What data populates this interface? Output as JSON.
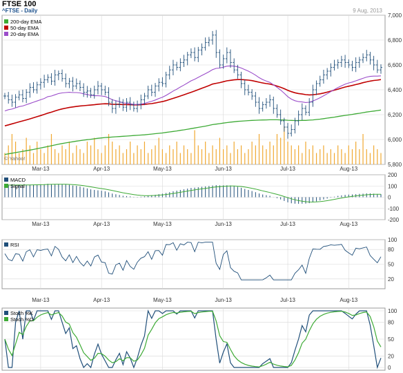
{
  "header": {
    "title": "FTSE 100",
    "subtitle": "^FTSE - Daily",
    "date": "9 Aug, 2013",
    "watermark": "© Yahoo!"
  },
  "colors": {
    "price": "#1f4e79",
    "ema200": "#3daa35",
    "ema50": "#c00000",
    "ema20": "#9b4dca",
    "volume": "#f0a830",
    "macd": "#1f4e79",
    "signal": "#3daa35",
    "rsi": "#1f4e79",
    "stochK": "#1f4e79",
    "stochD": "#3daa35",
    "grid": "#d8d8d8"
  },
  "chart_data": [
    {
      "type": "line",
      "panel": "price",
      "x_labels": [
        "Mar-13",
        "Apr-13",
        "May-13",
        "Jun-13",
        "Jul-13",
        "Aug-13"
      ],
      "ylim": [
        5800,
        7000
      ],
      "yticks": [
        "7,000",
        "6,800",
        "6,600",
        "6,400",
        "6,200",
        "6,000",
        "5,800"
      ],
      "legend": [
        "200-day EMA",
        "50-day EMA",
        "20-day EMA"
      ],
      "close": [
        6350,
        6320,
        6300,
        6340,
        6360,
        6330,
        6380,
        6420,
        6400,
        6440,
        6460,
        6480,
        6500,
        6470,
        6520,
        6530,
        6490,
        6450,
        6470,
        6430,
        6450,
        6420,
        6380,
        6390,
        6360,
        6400,
        6430,
        6400,
        6380,
        6300,
        6250,
        6280,
        6300,
        6260,
        6300,
        6280,
        6250,
        6280,
        6320,
        6350,
        6400,
        6380,
        6430,
        6460,
        6450,
        6520,
        6560,
        6600,
        6580,
        6620,
        6640,
        6680,
        6700,
        6660,
        6720,
        6740,
        6780,
        6800,
        6840,
        6700,
        6600,
        6650,
        6700,
        6620,
        6560,
        6520,
        6450,
        6400,
        6380,
        6350,
        6300,
        6250,
        6280,
        6300,
        6320,
        6250,
        6200,
        6150,
        6100,
        6050,
        6080,
        6150,
        6200,
        6250,
        6220,
        6300,
        6400,
        6450,
        6480,
        6520,
        6550,
        6580,
        6600,
        6620,
        6640,
        6620,
        6600,
        6580,
        6620,
        6640,
        6660,
        6680,
        6640,
        6600,
        6560,
        6580
      ],
      "ema20": [
        6230,
        6240,
        6245,
        6255,
        6265,
        6270,
        6280,
        6290,
        6300,
        6310,
        6320,
        6330,
        6345,
        6350,
        6360,
        6370,
        6375,
        6378,
        6380,
        6378,
        6378,
        6375,
        6368,
        6362,
        6355,
        6352,
        6352,
        6350,
        6346,
        6335,
        6320,
        6312,
        6305,
        6295,
        6292,
        6288,
        6282,
        6282,
        6285,
        6290,
        6300,
        6308,
        6318,
        6330,
        6340,
        6355,
        6372,
        6390,
        6405,
        6422,
        6438,
        6455,
        6472,
        6485,
        6500,
        6515,
        6530,
        6545,
        6562,
        6572,
        6575,
        6582,
        6590,
        6592,
        6590,
        6585,
        6575,
        6562,
        6550,
        6535,
        6518,
        6498,
        6482,
        6470,
        6460,
        6440,
        6420,
        6398,
        6372,
        6345,
        6325,
        6312,
        6305,
        6302,
        6298,
        6300,
        6310,
        6322,
        6336,
        6352,
        6368,
        6385,
        6402,
        6418,
        6432,
        6445,
        6455,
        6462,
        6472,
        6482,
        6492,
        6502,
        6508,
        6510,
        6510,
        6512
      ],
      "ema50": [
        6110,
        6118,
        6126,
        6134,
        6142,
        6150,
        6158,
        6166,
        6175,
        6184,
        6193,
        6202,
        6212,
        6220,
        6230,
        6239,
        6246,
        6252,
        6258,
        6262,
        6266,
        6270,
        6272,
        6275,
        6277,
        6280,
        6284,
        6286,
        6288,
        6287,
        6284,
        6283,
        6283,
        6281,
        6281,
        6280,
        6279,
        6279,
        6280,
        6282,
        6286,
        6289,
        6294,
        6300,
        6305,
        6313,
        6322,
        6331,
        6340,
        6350,
        6360,
        6370,
        6380,
        6390,
        6401,
        6412,
        6423,
        6434,
        6446,
        6452,
        6458,
        6465,
        6472,
        6476,
        6480,
        6482,
        6482,
        6480,
        6478,
        6474,
        6468,
        6461,
        6455,
        6450,
        6446,
        6439,
        6430,
        6420,
        6409,
        6396,
        6385,
        6376,
        6370,
        6366,
        6361,
        6359,
        6360,
        6364,
        6368,
        6374,
        6381,
        6389,
        6397,
        6405,
        6414,
        6422,
        6429,
        6435,
        6442,
        6449,
        6457,
        6464,
        6470,
        6475,
        6478,
        6482
      ],
      "ema200": [
        5880,
        5885,
        5890,
        5895,
        5900,
        5905,
        5910,
        5915,
        5920,
        5926,
        5932,
        5938,
        5944,
        5950,
        5956,
        5962,
        5968,
        5973,
        5978,
        5982,
        5987,
        5991,
        5995,
        5999,
        6002,
        6006,
        6010,
        6013,
        6016,
        6018,
        6020,
        6022,
        6024,
        6026,
        6028,
        6030,
        6032,
        6034,
        6036,
        6038,
        6041,
        6044,
        6047,
        6050,
        6053,
        6057,
        6061,
        6065,
        6069,
        6074,
        6078,
        6083,
        6088,
        6093,
        6098,
        6103,
        6108,
        6114,
        6120,
        6124,
        6128,
        6132,
        6136,
        6140,
        6143,
        6146,
        6148,
        6150,
        6152,
        6154,
        6155,
        6156,
        6157,
        6158,
        6159,
        6159,
        6159,
        6158,
        6157,
        6155,
        6154,
        6153,
        6153,
        6154,
        6154,
        6156,
        6158,
        6161,
        6164,
        6168,
        6172,
        6176,
        6180,
        6185,
        6190,
        6194,
        6198,
        6202,
        6207,
        6211,
        6216,
        6221,
        6225,
        6229,
        6233,
        6237
      ],
      "volume": [
        0.3,
        0.5,
        0.8,
        0.6,
        0.3,
        0.4,
        0.7,
        0.5,
        0.3,
        0.6,
        0.4,
        0.3,
        0.5,
        0.8,
        0.4,
        0.3,
        0.5,
        0.4,
        0.6,
        0.3,
        0.5,
        0.4,
        0.3,
        0.6,
        0.5,
        0.7,
        0.4,
        0.3,
        0.5,
        0.8,
        0.6,
        0.4,
        0.5,
        0.3,
        0.4,
        0.6,
        0.3,
        0.5,
        0.4,
        0.6,
        0.3,
        0.4,
        0.5,
        0.7,
        0.4,
        0.3,
        0.5,
        0.4,
        0.6,
        0.3,
        0.5,
        0.4,
        0.3,
        0.9,
        0.5,
        0.4,
        0.6,
        0.3,
        0.5,
        0.4,
        0.7,
        0.4,
        0.5,
        0.3,
        0.6,
        0.4,
        0.5,
        0.3,
        0.4,
        0.6,
        0.5,
        0.8,
        0.5,
        0.4,
        0.6,
        0.5,
        0.8,
        0.7,
        1.0,
        0.6,
        0.5,
        0.4,
        0.5,
        0.3,
        0.6,
        0.4,
        0.5,
        0.3,
        0.4,
        0.5,
        0.3,
        0.4,
        0.3,
        0.5,
        0.4,
        0.3,
        0.5,
        0.4,
        0.6,
        0.4,
        0.8,
        0.4,
        0.3,
        0.5,
        0.4,
        0.3
      ]
    },
    {
      "type": "bar",
      "panel": "macd",
      "legend": [
        "MACD",
        "Signal"
      ],
      "ylim": [
        -200,
        200
      ],
      "yticks": [
        "200",
        "100",
        "0",
        "-100",
        "-200"
      ],
      "x_labels": [
        "Mar-13",
        "Apr-13",
        "May-13",
        "Jun-13",
        "Jul-13",
        "Aug-13"
      ]
    },
    {
      "type": "line",
      "panel": "rsi",
      "legend": [
        "RSI"
      ],
      "ylim": [
        0,
        100
      ],
      "yticks": [
        "100",
        "80",
        "50",
        "20"
      ],
      "x_labels": [
        "Mar-13",
        "Apr-13",
        "May-13",
        "Jun-13",
        "Jul-13",
        "Aug-13"
      ]
    },
    {
      "type": "line",
      "panel": "stoch",
      "legend": [
        "Stoch %K",
        "Stoch %D"
      ],
      "ylim": [
        0,
        100
      ],
      "yticks": [
        "100",
        "80",
        "50",
        "20",
        "0"
      ],
      "x_labels": [
        "Mar-13",
        "Apr-13",
        "May-13",
        "Jun-13",
        "Jul-13",
        "Aug-13"
      ]
    }
  ]
}
